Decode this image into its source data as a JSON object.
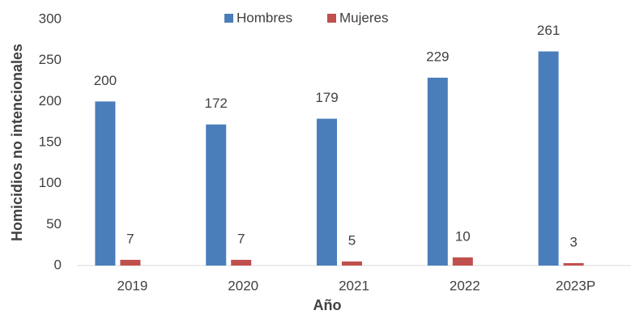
{
  "chart_data": {
    "type": "bar",
    "y_label": "Homicidios no intencionales",
    "x_label": "Año",
    "categories": [
      "2019",
      "2020",
      "2021",
      "2022",
      "2023P"
    ],
    "series": [
      {
        "name": "Hombres",
        "color": "#4a7ebb",
        "values": [
          200,
          172,
          179,
          229,
          261
        ]
      },
      {
        "name": "Mujeres",
        "color": "#c0504d",
        "values": [
          7,
          7,
          5,
          10,
          3
        ]
      }
    ],
    "ylim": [
      0,
      300
    ],
    "yticks": [
      0,
      50,
      100,
      150,
      200,
      250,
      300
    ],
    "grid": false,
    "legend": "top"
  }
}
